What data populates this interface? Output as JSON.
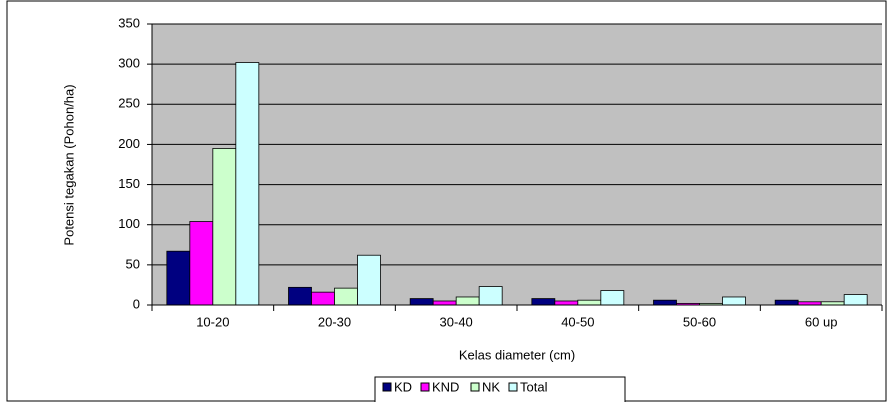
{
  "chart_data": {
    "type": "bar",
    "y_label": "Potensi tegakan (Pohon/ha)",
    "x_label": "Kelas diameter (cm)",
    "categories": [
      "10-20",
      "20-30",
      "30-40",
      "40-50",
      "50-60",
      "60 up"
    ],
    "series": [
      {
        "name": "KD",
        "color": "#000080",
        "values": [
          67,
          22,
          8,
          8,
          6,
          6
        ]
      },
      {
        "name": "KND",
        "color": "#ff00ff",
        "values": [
          104,
          16,
          5,
          5,
          2,
          4
        ]
      },
      {
        "name": "NK",
        "color": "#ccffcc",
        "values": [
          195,
          21,
          10,
          6,
          2,
          4
        ]
      },
      {
        "name": "Total",
        "color": "#ccffff",
        "values": [
          302,
          62,
          23,
          18,
          10,
          13
        ]
      }
    ],
    "ylim": [
      0,
      350
    ],
    "yticks": [
      0,
      50,
      100,
      150,
      200,
      250,
      300,
      350
    ],
    "grid": true,
    "legend": "bottom"
  }
}
